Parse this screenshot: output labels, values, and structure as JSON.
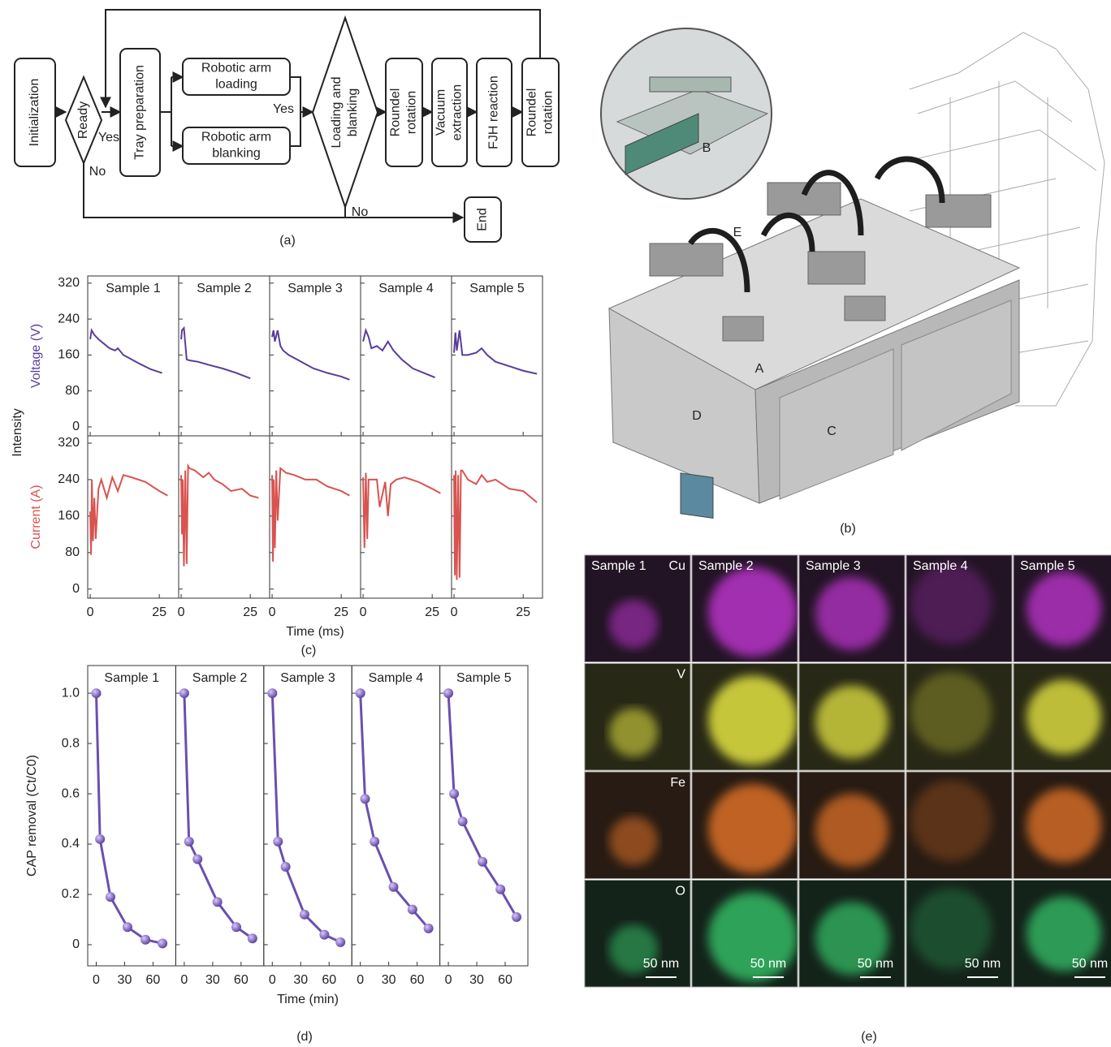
{
  "captions": [
    "(a)",
    "(b)",
    "(c)",
    "(d)",
    "(e)"
  ],
  "flowchart": {
    "nodes": [
      {
        "lines": [
          "Initialization"
        ]
      },
      {
        "lines": [
          "Ready"
        ]
      },
      {
        "lines": [
          "Tray preparation"
        ]
      },
      {
        "lines": [
          "Robotic arm",
          "loading"
        ]
      },
      {
        "lines": [
          "Robotic arm",
          "blanking"
        ]
      },
      {
        "lines": [
          "Loading and",
          "blanking"
        ]
      },
      {
        "lines": [
          "Roundel",
          "rotation"
        ]
      },
      {
        "lines": [
          "Vacuum",
          "extraction"
        ]
      },
      {
        "lines": [
          "FJH reaction"
        ]
      },
      {
        "lines": [
          "Roundel",
          "rotation"
        ]
      },
      {
        "lines": [
          "End"
        ]
      }
    ],
    "edge_labels": [
      "Yes",
      "No",
      "Yes",
      "No"
    ]
  },
  "machine": {
    "labels": [
      "A",
      "B",
      "C",
      "D",
      "E"
    ]
  },
  "panel_c": {
    "y_label": "Intensity"
  },
  "chart_data": [
    {
      "type": "line",
      "y_label": "Voltage (V)",
      "xlim": [
        -0.9,
        32
      ],
      "xticks": [
        0,
        25
      ],
      "ylim": [
        -20,
        336
      ],
      "yticks": [
        0,
        80,
        160,
        240,
        320
      ],
      "series": [
        {
          "name": "Sample 1",
          "color": "#5a3d9a",
          "x": [
            0,
            0.5,
            1.5,
            3,
            5,
            7,
            9,
            10,
            12,
            15,
            18,
            22,
            26
          ],
          "values": [
            195,
            215,
            205,
            195,
            185,
            175,
            170,
            175,
            160,
            150,
            140,
            128,
            120
          ]
        },
        {
          "name": "Sample 2",
          "color": "#5a3d9a",
          "x": [
            0,
            0.3,
            1,
            2,
            3,
            6,
            10,
            15,
            20,
            25
          ],
          "values": [
            195,
            215,
            220,
            150,
            148,
            145,
            138,
            130,
            120,
            108
          ]
        },
        {
          "name": "Sample 3",
          "color": "#5a3d9a",
          "x": [
            0,
            0.5,
            1,
            2,
            3,
            4,
            6,
            9,
            12,
            15,
            20,
            25,
            28
          ],
          "values": [
            200,
            215,
            190,
            215,
            180,
            170,
            160,
            150,
            140,
            130,
            120,
            112,
            105
          ]
        },
        {
          "name": "Sample 4",
          "color": "#5a3d9a",
          "x": [
            0,
            1,
            2,
            3,
            5,
            7,
            9,
            11,
            14,
            18,
            22,
            26
          ],
          "values": [
            190,
            215,
            200,
            175,
            180,
            170,
            190,
            170,
            150,
            130,
            120,
            110
          ]
        },
        {
          "name": "Sample 5",
          "color": "#5a3d9a",
          "x": [
            0,
            0.5,
            1,
            2,
            3,
            5,
            8,
            10,
            12,
            15,
            20,
            25,
            30
          ],
          "values": [
            165,
            210,
            170,
            215,
            160,
            160,
            165,
            175,
            160,
            145,
            135,
            125,
            118
          ]
        }
      ]
    },
    {
      "type": "line",
      "y_label": "Current (A)",
      "x_label": "Time (ms)",
      "xlim": [
        -0.9,
        32
      ],
      "xticks": [
        0,
        25
      ],
      "ylim": [
        -20,
        336
      ],
      "yticks": [
        0,
        80,
        160,
        240,
        320
      ],
      "series": [
        {
          "color": "#d9534f",
          "x": [
            0,
            0.3,
            0.6,
            1,
            1.5,
            2,
            3,
            4,
            6,
            8,
            10,
            12,
            15,
            20,
            25,
            28
          ],
          "values": [
            170,
            75,
            240,
            105,
            200,
            110,
            220,
            240,
            200,
            245,
            215,
            250,
            245,
            235,
            215,
            205
          ]
        },
        {
          "color": "#d9534f",
          "x": [
            0,
            0.3,
            0.6,
            1,
            1.5,
            2,
            2.5,
            3,
            5,
            8,
            10,
            12,
            15,
            18,
            22,
            25,
            28
          ],
          "values": [
            250,
            120,
            240,
            50,
            260,
            55,
            270,
            265,
            260,
            245,
            255,
            240,
            230,
            215,
            220,
            205,
            200
          ]
        },
        {
          "color": "#d9534f",
          "x": [
            0,
            0.3,
            0.6,
            1,
            1.5,
            2,
            3,
            5,
            8,
            12,
            16,
            20,
            25,
            28
          ],
          "values": [
            250,
            60,
            240,
            90,
            260,
            150,
            265,
            255,
            250,
            240,
            240,
            225,
            215,
            205
          ]
        },
        {
          "color": "#d9534f",
          "x": [
            0,
            0.5,
            1,
            1.5,
            2,
            3,
            5,
            6,
            8,
            9,
            10,
            12,
            15,
            20,
            25,
            28
          ],
          "values": [
            245,
            90,
            255,
            110,
            240,
            240,
            240,
            180,
            235,
            160,
            230,
            240,
            245,
            235,
            220,
            210
          ]
        },
        {
          "color": "#d9534f",
          "x": [
            0,
            0.3,
            0.6,
            1,
            1.5,
            2,
            2.5,
            3,
            5,
            8,
            10,
            12,
            15,
            20,
            25,
            30
          ],
          "values": [
            250,
            30,
            260,
            20,
            250,
            25,
            260,
            260,
            240,
            230,
            250,
            235,
            240,
            220,
            215,
            190
          ]
        }
      ]
    },
    {
      "type": "line",
      "markers": true,
      "y_label": "CAP removal (Ct/C0)",
      "x_label": "Time (min)",
      "xlim": [
        -9,
        84
      ],
      "xticks": [
        0,
        30,
        60
      ],
      "ylim": [
        -0.084,
        1.11
      ],
      "yticks": [
        0,
        0.2,
        0.4,
        0.6,
        0.8,
        {
          "value": 1,
          "label": "1.0"
        }
      ],
      "series": [
        {
          "name": "Sample 1",
          "color": "#6a4fb0",
          "x": [
            0,
            4,
            15,
            33,
            52,
            70
          ],
          "values": [
            1.0,
            0.42,
            0.19,
            0.07,
            0.02,
            0.005
          ]
        },
        {
          "name": "Sample 2",
          "color": "#6a4fb0",
          "x": [
            0,
            5,
            14,
            35,
            55,
            72
          ],
          "values": [
            1.0,
            0.41,
            0.34,
            0.17,
            0.07,
            0.025
          ]
        },
        {
          "name": "Sample 3",
          "color": "#6a4fb0",
          "x": [
            0,
            6,
            14,
            34,
            55,
            72
          ],
          "values": [
            1.0,
            0.41,
            0.31,
            0.12,
            0.04,
            0.01
          ]
        },
        {
          "name": "Sample 4",
          "color": "#6a4fb0",
          "x": [
            0,
            5,
            15,
            35,
            55,
            72
          ],
          "values": [
            1.0,
            0.58,
            0.41,
            0.23,
            0.14,
            0.065
          ]
        },
        {
          "name": "Sample 5",
          "color": "#6a4fb0",
          "x": [
            0,
            6,
            15,
            36,
            55,
            72
          ],
          "values": [
            1.0,
            0.6,
            0.49,
            0.33,
            0.22,
            0.11
          ]
        }
      ]
    }
  ],
  "eds_map": {
    "samples": [
      "Sample 1",
      "Sample 2",
      "Sample 3",
      "Sample 4",
      "Sample 5"
    ],
    "elements": [
      "Cu",
      "V",
      "Fe",
      "O"
    ],
    "scale_bars": [
      "50 nm",
      "50 nm",
      "50 nm",
      "50 nm",
      "50 nm"
    ]
  }
}
